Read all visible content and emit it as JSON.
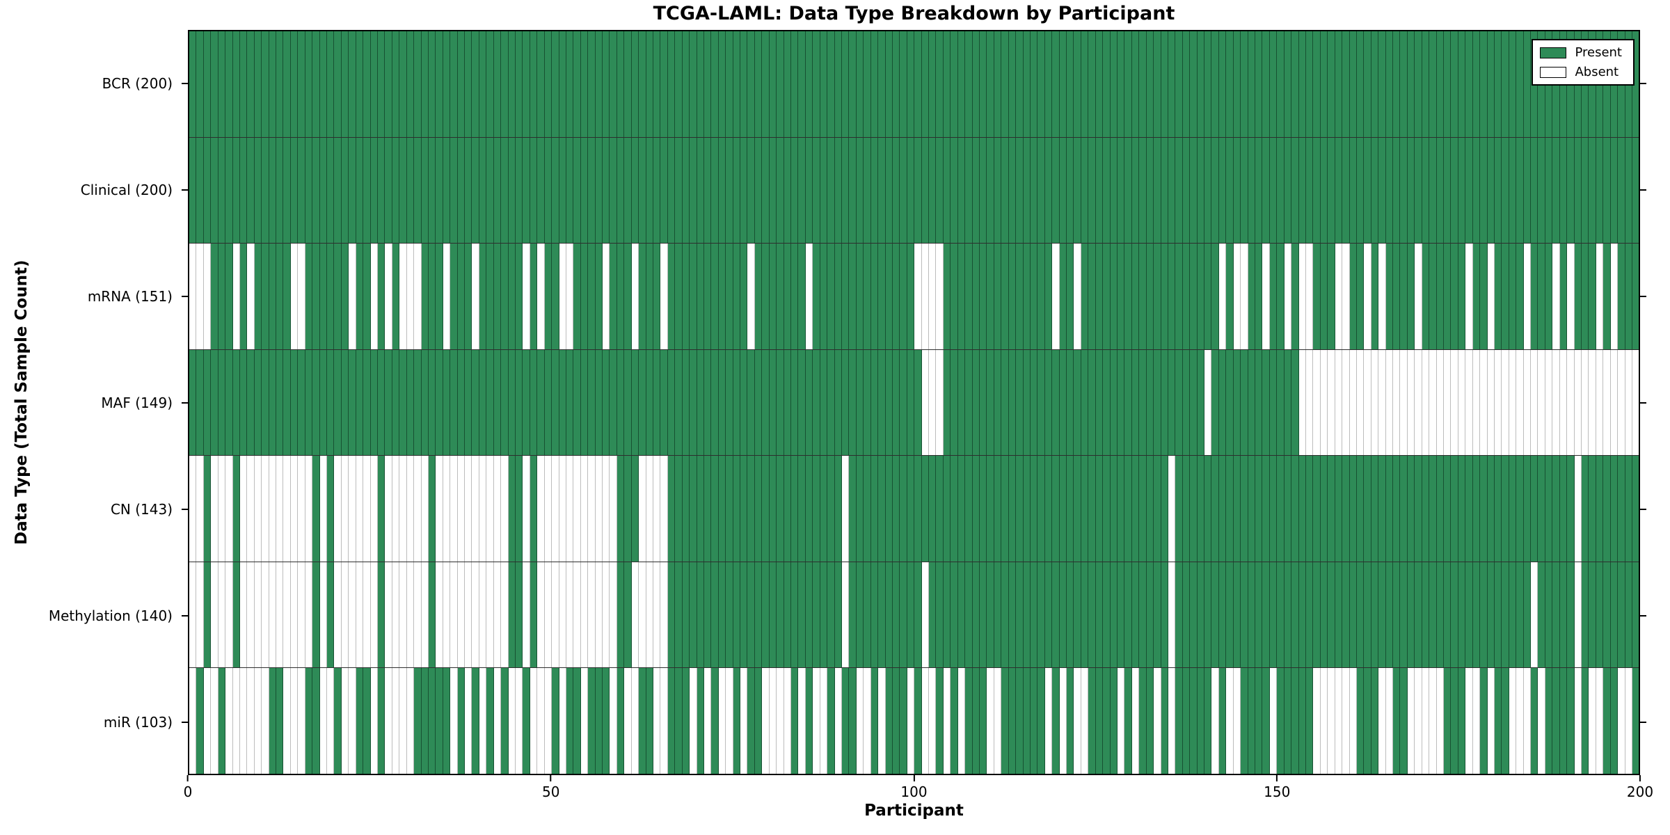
{
  "chart_data": {
    "type": "heatmap",
    "title": "TCGA-LAML: Data Type Breakdown by Participant",
    "xlabel": "Participant",
    "ylabel": "Data Type (Total Sample Count)",
    "grid": "row-boundaries-only",
    "legend_position": "upper-right-inside",
    "colors": {
      "present": "#2e8b57",
      "absent": "#ffffff",
      "cell_edge_on_green": "#16402a",
      "cell_edge_on_white": "#bcbcbc",
      "spine": "#000000"
    },
    "legend": [
      {
        "label": "Present",
        "color": "#2e8b57"
      },
      {
        "label": "Absent",
        "color": "#ffffff"
      }
    ],
    "x_axis": {
      "min": 0,
      "max": 200,
      "ticks": [
        "0",
        "50",
        "100",
        "150",
        "200"
      ]
    },
    "n_participants": 200,
    "rows": [
      {
        "data_type": "BCR",
        "label": "BCR (200)",
        "present_count": 200,
        "pattern": [
          "1111111111",
          "1111111111",
          "1111111111",
          "1111111111",
          "1111111111",
          "1111111111",
          "1111111111",
          "1111111111",
          "1111111111",
          "1111111111",
          "1111111111",
          "1111111111",
          "1111111111",
          "1111111111",
          "1111111111",
          "1111111111",
          "1111111111",
          "1111111111",
          "1111111111",
          "1111111111"
        ]
      },
      {
        "data_type": "Clinical",
        "label": "Clinical (200)",
        "present_count": 200,
        "pattern": [
          "1111111111",
          "1111111111",
          "1111111111",
          "1111111111",
          "1111111111",
          "1111111111",
          "1111111111",
          "1111111111",
          "1111111111",
          "1111111111",
          "1111111111",
          "1111111111",
          "1111111111",
          "1111111111",
          "1111111111",
          "1111111111",
          "1111111111",
          "1111111111",
          "1111111111",
          "1111111111"
        ]
      },
      {
        "data_type": "mRNA",
        "label": "mRNA (151)",
        "present_count": 151,
        "pattern": [
          "0001110101",
          "1111001111",
          "1101101010",
          "0011101110",
          "1111110101",
          "1001111011",
          "1011101111",
          "1111111011",
          "1111101111",
          "1111111111",
          "0000111111",
          "1111111110",
          "1101111111",
          "1111111111",
          "1101001101",
          "1010011100",
          "1101011110",
          "1111110110",
          "1111011101",
          "0111010111"
        ]
      },
      {
        "data_type": "MAF",
        "label": "MAF (149)",
        "present_count": 149,
        "pattern": [
          "1111111111",
          "1111111111",
          "1111111111",
          "1111111111",
          "1111111111",
          "1111111111",
          "1111111111",
          "1111111111",
          "1111111111",
          "1111111111",
          "1000111111",
          "1111111111",
          "1111111111",
          "1111111111",
          "0111111111",
          "1110000000",
          "0000000000",
          "0000000000",
          "0000000000",
          "0000000000"
        ]
      },
      {
        "data_type": "CN",
        "label": "CN (143)",
        "present_count": 143,
        "pattern": [
          "0010001000",
          "0000000101",
          "0000001000",
          "0001000000",
          "0000110100",
          "0000000001",
          "1100001111",
          "1111111111",
          "1111111111",
          "0111111111",
          "1111111111",
          "1111111111",
          "1111111111",
          "1111101111",
          "1111111111",
          "1111111111",
          "1111111111",
          "1111111111",
          "1111111111",
          "1011111111"
        ]
      },
      {
        "data_type": "Methylation",
        "label": "Methylation (140)",
        "present_count": 140,
        "pattern": [
          "0010001000",
          "0000000101",
          "0000001000",
          "0001000000",
          "0000110100",
          "0000000001",
          "1000001111",
          "1111111111",
          "1111111111",
          "0111111111",
          "1011111111",
          "1111111111",
          "1111111111",
          "1111101111",
          "1111111111",
          "1111111111",
          "1111111111",
          "1111111111",
          "1111101111",
          "1011111111"
        ]
      },
      {
        "data_type": "miR",
        "label": "miR (103)",
        "present_count": 103,
        "pattern": [
          "0100100000",
          "0110001100",
          "1001101000",
          "0111110101",
          "0101001000",
          "1011011101",
          "0011001110",
          "1010010110",
          "0001010010",
          "1100101110",
          "1001010111",
          "0011111101",
          "0100111101",
          "0110101111",
          "1010011110",
          "1111100000",
          "0111001100",
          "0001110010",
          "1100010111",
          "1010011001"
        ]
      }
    ]
  }
}
